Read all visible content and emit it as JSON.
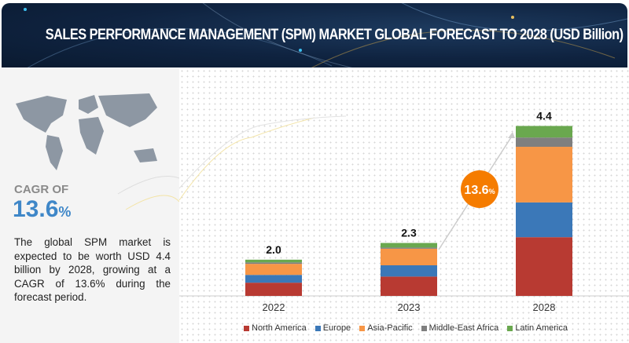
{
  "header": {
    "title": "SALES PERFORMANCE MANAGEMENT (SPM) MARKET GLOBAL FORECAST TO 2028 (USD Billion)"
  },
  "left_panel": {
    "cagr_label": "CAGR OF",
    "cagr_value": "13.6",
    "cagr_unit": "%",
    "description": "The global SPM market is expected to be worth USD 4.4 billion by 2028, growing at a CAGR of 13.6% during the forecast period."
  },
  "badge": {
    "value": "13.6",
    "unit": "%",
    "color": "#f57c00"
  },
  "chart_data": {
    "type": "bar",
    "stacked": true,
    "categories": [
      "2022",
      "2023",
      "2028"
    ],
    "totals": [
      "2.0",
      "2.3",
      "4.4"
    ],
    "series": [
      {
        "name": "North America",
        "color": "#b83a32",
        "values": [
          0.73,
          0.84,
          1.52
        ]
      },
      {
        "name": "Europe",
        "color": "#3b78b8",
        "values": [
          0.43,
          0.49,
          0.9
        ]
      },
      {
        "name": "Asia-Pacific",
        "color": "#f79646",
        "values": [
          0.61,
          0.72,
          1.44
        ]
      },
      {
        "name": "Middle-East Africa",
        "color": "#7f7f7f",
        "values": [
          0.08,
          0.05,
          0.24
        ]
      },
      {
        "name": "Latin America",
        "color": "#6aa84f",
        "values": [
          0.15,
          0.2,
          0.3
        ]
      }
    ],
    "legend": "bottom",
    "grid": false
  }
}
